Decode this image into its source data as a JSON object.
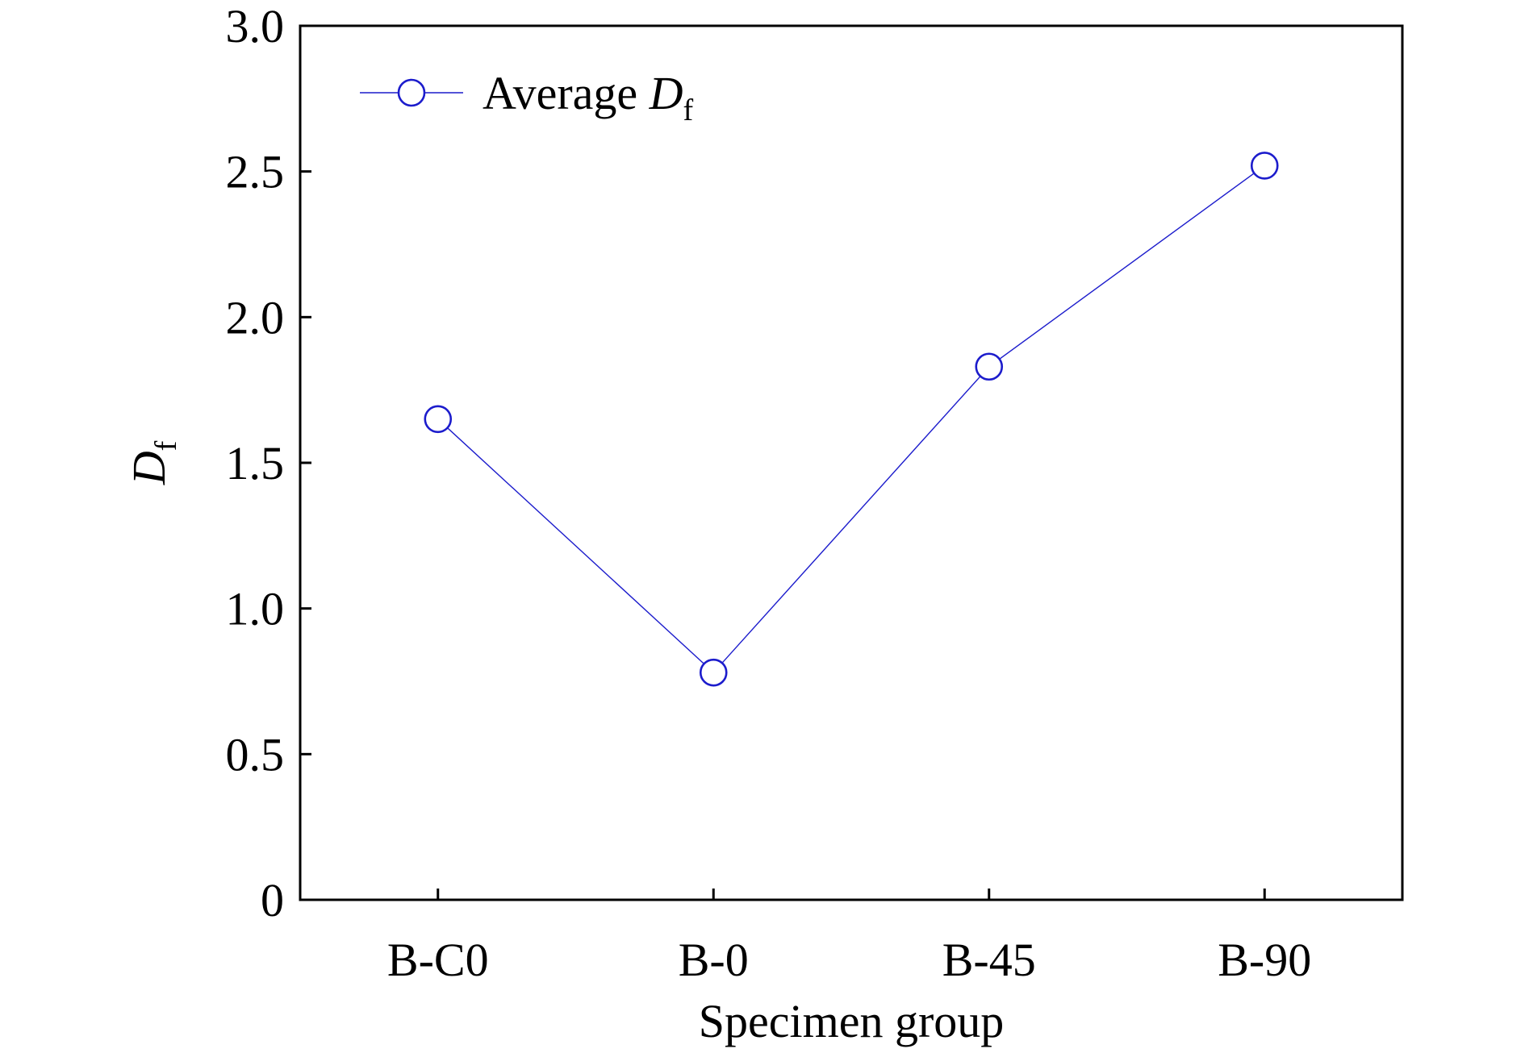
{
  "chart_data": {
    "type": "line",
    "categories": [
      "B-C0",
      "B-0",
      "B-45",
      "B-90"
    ],
    "series": [
      {
        "name": "Average D_f",
        "name_main": "Average ",
        "name_symbol": "D",
        "name_subscript": "f",
        "values": [
          1.65,
          0.78,
          1.83,
          2.52
        ],
        "color": "#1c1ccc",
        "marker": "open-circle"
      }
    ],
    "xlabel": "Specimen group",
    "ylabel": "D_f",
    "ylabel_symbol": "D",
    "ylabel_subscript": "f",
    "ylim": [
      0,
      3.0
    ],
    "yticks": [
      0,
      0.5,
      1.0,
      1.5,
      2.0,
      2.5,
      3.0
    ],
    "ytick_labels": [
      "0",
      "0.5",
      "1.0",
      "1.5",
      "2.0",
      "2.5",
      "3.0"
    ],
    "grid": false,
    "legend_position": "top-left"
  }
}
